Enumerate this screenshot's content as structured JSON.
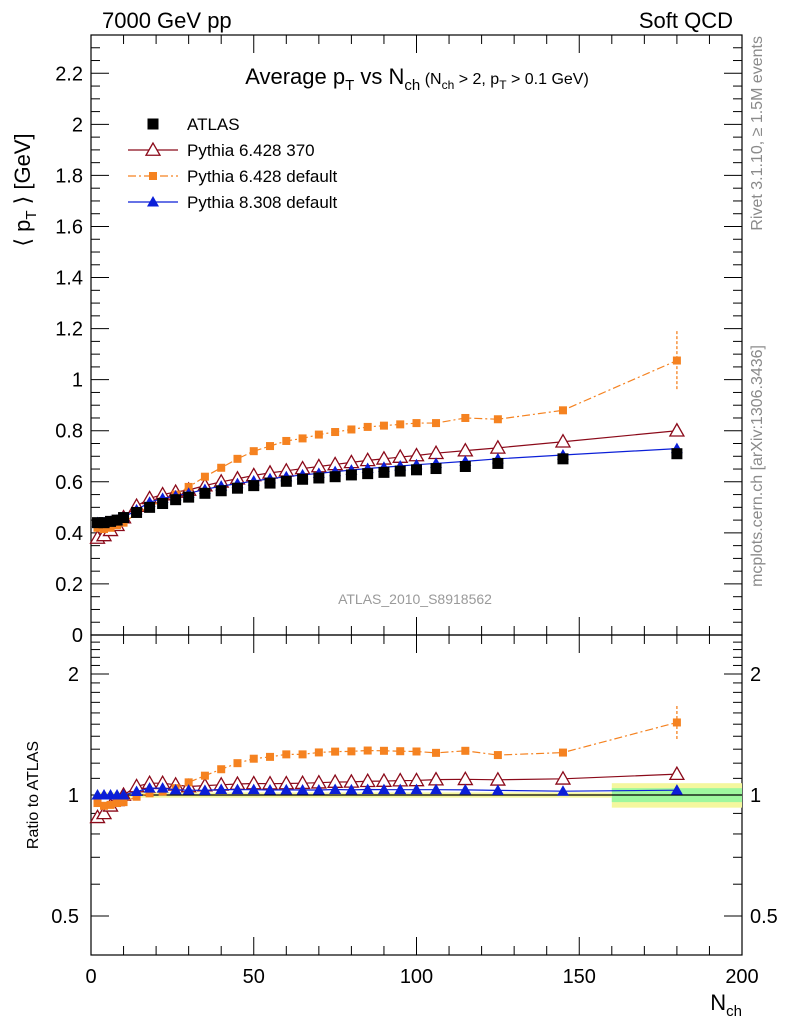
{
  "header": {
    "left_text": "7000 GeV pp",
    "right_text": "Soft QCD"
  },
  "side_labels": {
    "rivet": "Rivet 3.1.10, ≥ 1.5M events",
    "mcplots": "mcplots.cern.ch [arXiv:1306.3436]"
  },
  "watermark": "ATLAS_2010_S8918562",
  "colors": {
    "atlas": "#000000",
    "pythia6_370": "#8b0a1a",
    "pythia6_default": "#f58220",
    "pythia8_default": "#0b1fd8",
    "band_inner": "#9ef79e",
    "band_outer": "#f4f79e"
  },
  "chart_data": [
    {
      "type": "scatter",
      "title": "Average p_T vs N_ch (N_ch > 2, p_T > 0.1 GeV)",
      "ylabel": "⟨ p_T ⟩ [GeV]",
      "xlim": [
        0,
        200
      ],
      "ylim": [
        0,
        2.35
      ],
      "y_ticks": [
        0,
        0.2,
        0.4,
        0.6,
        0.8,
        1,
        1.2,
        1.4,
        1.6,
        1.8,
        2,
        2.2
      ],
      "y_tick_labels": [
        "0",
        "0.2",
        "0.4",
        "0.6",
        "0.8",
        "1",
        "1.2",
        "1.4",
        "1.6",
        "1.8",
        "2",
        "2.2"
      ],
      "legend_position": "top-left",
      "series": [
        {
          "name": "ATLAS",
          "marker": "filled-square",
          "x": [
            2,
            4,
            6,
            8,
            10,
            14,
            18,
            22,
            26,
            30,
            35,
            40,
            45,
            50,
            55,
            60,
            65,
            70,
            75,
            80,
            85,
            90,
            95,
            100,
            106,
            115,
            125,
            145,
            180
          ],
          "y": [
            0.44,
            0.44,
            0.445,
            0.45,
            0.46,
            0.48,
            0.5,
            0.515,
            0.53,
            0.54,
            0.555,
            0.565,
            0.575,
            0.585,
            0.595,
            0.602,
            0.61,
            0.615,
            0.62,
            0.627,
            0.632,
            0.637,
            0.642,
            0.647,
            0.652,
            0.66,
            0.672,
            0.69,
            0.71
          ]
        },
        {
          "name": "Pythia 6.428 370",
          "marker": "open-triangle",
          "x": [
            2,
            4,
            6,
            8,
            10,
            14,
            18,
            22,
            26,
            30,
            35,
            40,
            45,
            50,
            55,
            60,
            65,
            70,
            75,
            80,
            85,
            90,
            95,
            100,
            106,
            115,
            125,
            145,
            180
          ],
          "y": [
            0.38,
            0.39,
            0.41,
            0.43,
            0.46,
            0.505,
            0.535,
            0.55,
            0.56,
            0.568,
            0.585,
            0.6,
            0.612,
            0.625,
            0.635,
            0.643,
            0.652,
            0.66,
            0.668,
            0.676,
            0.684,
            0.69,
            0.697,
            0.703,
            0.712,
            0.722,
            0.733,
            0.757,
            0.8
          ]
        },
        {
          "name": "Pythia 6.428 default",
          "marker": "filled-small-square",
          "x": [
            2,
            4,
            6,
            8,
            10,
            14,
            18,
            22,
            26,
            30,
            35,
            40,
            45,
            50,
            55,
            60,
            65,
            70,
            75,
            80,
            85,
            90,
            95,
            100,
            106,
            115,
            125,
            145,
            180
          ],
          "y": [
            0.42,
            0.415,
            0.42,
            0.43,
            0.44,
            0.475,
            0.505,
            0.525,
            0.55,
            0.58,
            0.62,
            0.655,
            0.69,
            0.72,
            0.74,
            0.76,
            0.77,
            0.785,
            0.795,
            0.805,
            0.815,
            0.82,
            0.825,
            0.83,
            0.83,
            0.85,
            0.845,
            0.88,
            1.075
          ],
          "yerr": [
            0,
            0,
            0,
            0,
            0,
            0,
            0,
            0,
            0,
            0,
            0,
            0,
            0,
            0,
            0,
            0,
            0,
            0,
            0,
            0,
            0,
            0,
            0,
            0,
            0,
            0,
            0,
            0,
            0.115
          ]
        },
        {
          "name": "Pythia 8.308 default",
          "marker": "filled-triangle",
          "x": [
            2,
            4,
            6,
            8,
            10,
            14,
            18,
            22,
            26,
            30,
            35,
            40,
            45,
            50,
            55,
            60,
            65,
            70,
            75,
            80,
            85,
            90,
            95,
            100,
            106,
            115,
            125,
            145,
            180
          ],
          "y": [
            0.44,
            0.44,
            0.445,
            0.45,
            0.46,
            0.49,
            0.52,
            0.535,
            0.545,
            0.555,
            0.57,
            0.583,
            0.593,
            0.603,
            0.612,
            0.62,
            0.627,
            0.633,
            0.64,
            0.646,
            0.652,
            0.657,
            0.662,
            0.667,
            0.672,
            0.68,
            0.69,
            0.705,
            0.73
          ]
        }
      ]
    },
    {
      "type": "scatter",
      "ylabel": "Ratio to ATLAS",
      "xlabel": "N_ch",
      "xlim": [
        0,
        200
      ],
      "ylim": [
        0.4,
        2.5
      ],
      "x_ticks": [
        0,
        50,
        100,
        150,
        200
      ],
      "x_tick_labels": [
        "0",
        "50",
        "100",
        "150",
        "200"
      ],
      "y_ticks": [
        0.5,
        1,
        2
      ],
      "y_tick_labels": [
        "0.5",
        "1",
        "2"
      ],
      "band": {
        "x": [
          160,
          200
        ],
        "inner": [
          0.96,
          1.04
        ],
        "outer": [
          0.93,
          1.07
        ]
      },
      "series": [
        {
          "name": "Pythia 6.428 370",
          "marker": "open-triangle",
          "x": [
            2,
            4,
            6,
            8,
            10,
            14,
            18,
            22,
            26,
            30,
            35,
            40,
            45,
            50,
            55,
            60,
            65,
            70,
            75,
            80,
            85,
            90,
            95,
            100,
            106,
            115,
            125,
            145,
            180
          ],
          "y": [
            0.88,
            0.9,
            0.94,
            0.97,
            1.0,
            1.05,
            1.07,
            1.07,
            1.06,
            1.05,
            1.055,
            1.06,
            1.065,
            1.068,
            1.067,
            1.068,
            1.07,
            1.073,
            1.077,
            1.078,
            1.082,
            1.083,
            1.086,
            1.087,
            1.092,
            1.094,
            1.091,
            1.097,
            1.127
          ]
        },
        {
          "name": "Pythia 6.428 default",
          "marker": "filled-small-square",
          "x": [
            2,
            4,
            6,
            8,
            10,
            14,
            18,
            22,
            26,
            30,
            35,
            40,
            45,
            50,
            55,
            60,
            65,
            70,
            75,
            80,
            85,
            90,
            95,
            100,
            106,
            115,
            125,
            145,
            180
          ],
          "y": [
            0.955,
            0.94,
            0.945,
            0.955,
            0.96,
            0.99,
            1.01,
            1.02,
            1.04,
            1.075,
            1.117,
            1.159,
            1.2,
            1.231,
            1.244,
            1.262,
            1.262,
            1.276,
            1.282,
            1.284,
            1.29,
            1.288,
            1.285,
            1.283,
            1.273,
            1.288,
            1.257,
            1.275,
            1.515
          ],
          "yerr": [
            0,
            0,
            0,
            0,
            0,
            0,
            0,
            0,
            0,
            0,
            0,
            0,
            0,
            0,
            0,
            0,
            0,
            0,
            0,
            0,
            0,
            0,
            0,
            0,
            0,
            0,
            0,
            0,
            0.15
          ]
        },
        {
          "name": "Pythia 8.308 default",
          "marker": "filled-triangle",
          "x": [
            2,
            4,
            6,
            8,
            10,
            14,
            18,
            22,
            26,
            30,
            35,
            40,
            45,
            50,
            55,
            60,
            65,
            70,
            75,
            80,
            85,
            90,
            95,
            100,
            106,
            115,
            125,
            145,
            180
          ],
          "y": [
            1.0,
            1.0,
            1.0,
            1.0,
            1.0,
            1.02,
            1.04,
            1.04,
            1.03,
            1.028,
            1.027,
            1.032,
            1.031,
            1.031,
            1.029,
            1.03,
            1.029,
            1.029,
            1.032,
            1.03,
            1.032,
            1.031,
            1.031,
            1.031,
            1.031,
            1.03,
            1.027,
            1.022,
            1.028
          ]
        }
      ]
    }
  ]
}
